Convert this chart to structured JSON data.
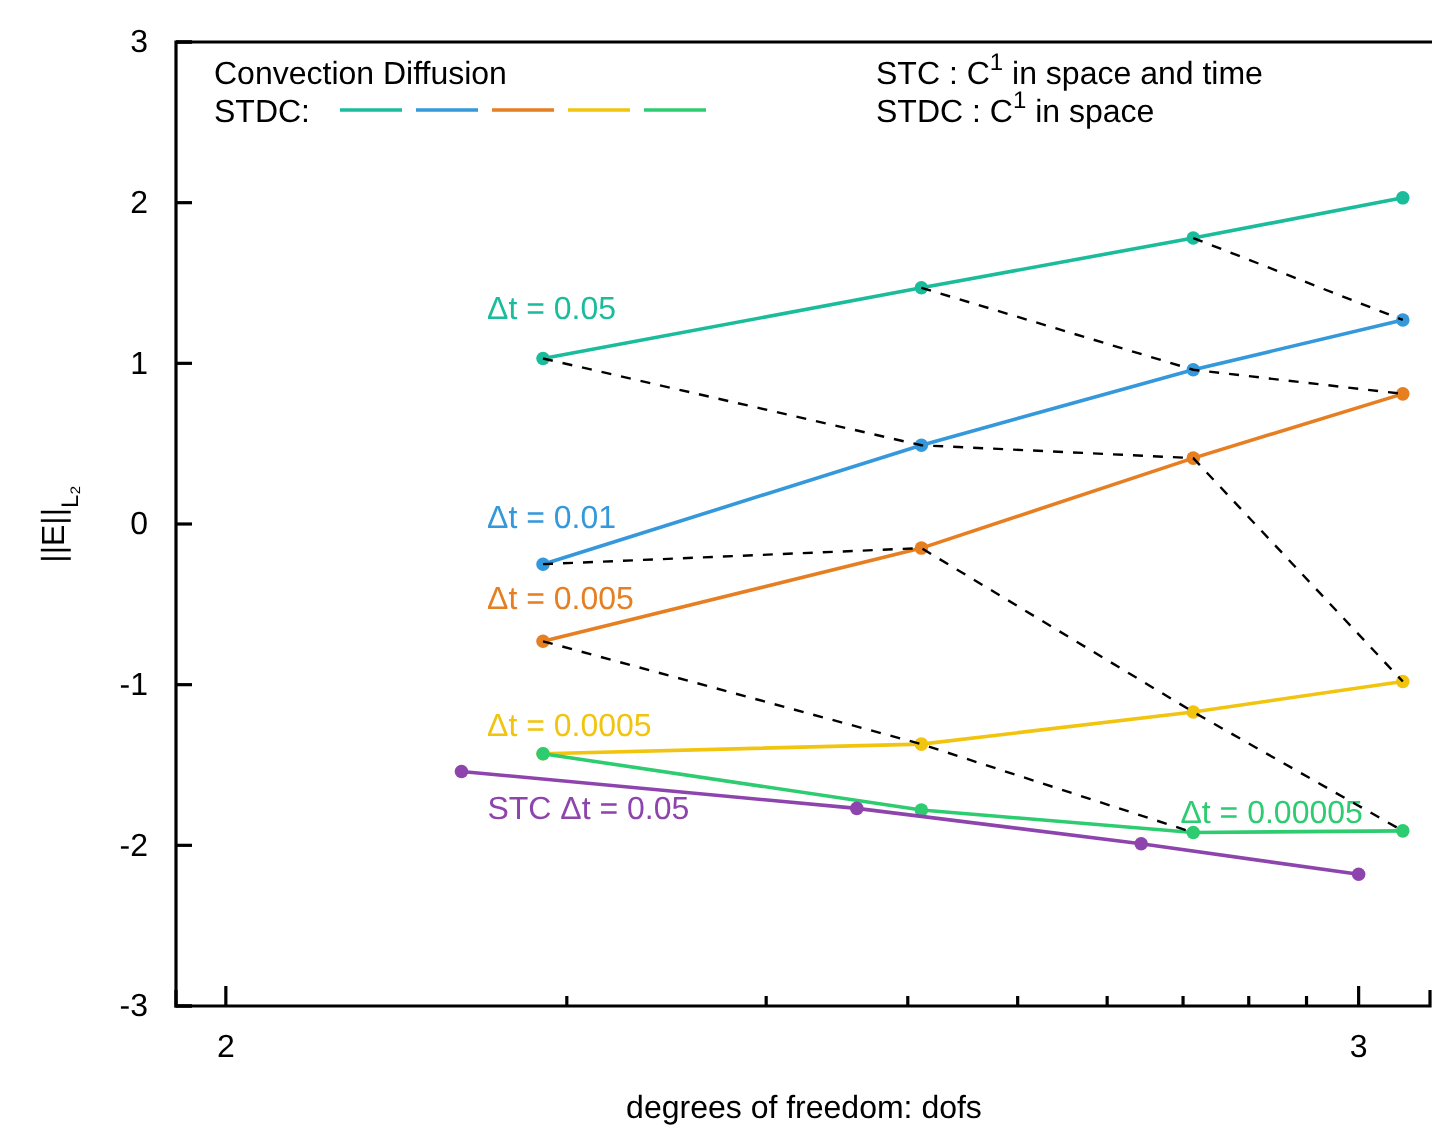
{
  "chart_data": {
    "type": "line",
    "title": "Convection Diffusion",
    "legend_title": "STDC:",
    "xlabel": "degrees of freedom: dofs",
    "ylabel": "||E||$_{L₂}$",
    "annotations": [
      "STC : C$^{1}$ in space and time",
      "STDC : C$^{1}$ in space"
    ],
    "xlim": [
      1.956,
      3.063
    ],
    "ylim": [
      -3,
      3
    ],
    "xticks": [
      2,
      {
        "value": 2.301,
        "label": null
      },
      {
        "value": 2.477,
        "label": null
      },
      {
        "value": 2.602,
        "label": null
      },
      {
        "value": 2.699,
        "label": null
      },
      {
        "value": 2.778,
        "label": null
      },
      {
        "value": 2.845,
        "label": null
      },
      {
        "value": 2.903,
        "label": null
      },
      {
        "value": 2.954,
        "label": null
      },
      3
    ],
    "yticks": [
      -3,
      -2,
      -1,
      0,
      1,
      2,
      3
    ],
    "marker": "circle",
    "series": [
      {
        "name": "Δt = 0.05",
        "color": "#1abc9c",
        "x": [
          2.28,
          2.614,
          2.854,
          3.039
        ],
        "values": [
          1.03,
          1.47,
          1.78,
          2.03
        ]
      },
      {
        "name": "Δt = 0.01",
        "color": "#3498db",
        "x": [
          2.28,
          2.614,
          2.854,
          3.039
        ],
        "values": [
          -0.25,
          0.49,
          0.96,
          1.27
        ]
      },
      {
        "name": "Δt = 0.005",
        "color": "#e67e22",
        "x": [
          2.28,
          2.614,
          2.854,
          3.039
        ],
        "values": [
          -0.73,
          -0.15,
          0.41,
          0.81
        ]
      },
      {
        "name": "Δt = 0.0005",
        "color": "#f1c40f",
        "x": [
          2.28,
          2.614,
          2.854,
          3.039
        ],
        "values": [
          -1.43,
          -1.37,
          -1.17,
          -0.98
        ]
      },
      {
        "name": "Δt = 0.00005",
        "color": "#2ecc71",
        "x": [
          2.28,
          2.614,
          2.854,
          3.039
        ],
        "values": [
          -1.43,
          -1.78,
          -1.92,
          -1.91
        ]
      },
      {
        "name": "STC Δt = 0.05",
        "color": "#8e44ad",
        "x": [
          2.208,
          2.557,
          2.808,
          3.0
        ],
        "values": [
          -1.54,
          -1.77,
          -1.99,
          -2.18
        ]
      },
      {
        "color": "#000000",
        "line_style": "dashed",
        "marker": "none",
        "x": [
          2.28,
          2.614,
          2.854,
          3.039
        ],
        "values": [
          1.03,
          0.49,
          0.41,
          -0.98
        ]
      },
      {
        "color": "#000000",
        "line_style": "dashed",
        "marker": "none",
        "x": [
          2.614,
          2.854,
          3.039
        ],
        "values": [
          1.47,
          0.96,
          0.81
        ]
      },
      {
        "color": "#000000",
        "line_style": "dashed",
        "marker": "none",
        "x": [
          2.854,
          3.039
        ],
        "values": [
          1.78,
          1.27
        ]
      },
      {
        "color": "#000000",
        "line_style": "dashed",
        "marker": "none",
        "x": [
          2.28,
          2.614,
          2.854,
          3.039
        ],
        "values": [
          -0.25,
          -0.15,
          -1.17,
          -1.91
        ]
      },
      {
        "color": "#000000",
        "line_style": "dashed",
        "marker": "none",
        "x": [
          2.28,
          2.614,
          2.854
        ],
        "values": [
          -0.73,
          -1.37,
          -1.92
        ]
      }
    ]
  }
}
